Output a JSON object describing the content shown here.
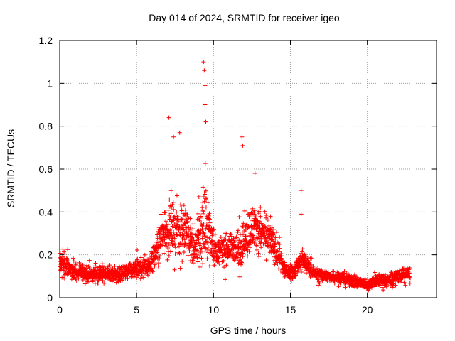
{
  "chart_data": {
    "type": "scatter",
    "title": "Day 014 of 2024, SRMTID for receiver igeo",
    "xlabel": "GPS time / hours",
    "ylabel": "SRMTID / TECUs",
    "xlim": [
      0,
      24.5
    ],
    "ylim": [
      0,
      1.2
    ],
    "xticks": [
      0,
      5,
      10,
      15,
      20
    ],
    "yticks": [
      0,
      0.2,
      0.4,
      0.6,
      0.8,
      1,
      1.2
    ],
    "ytick_labels": [
      "0",
      "0.2",
      "0.4",
      "0.6",
      "0.8",
      "1",
      "1.2"
    ],
    "grid": true,
    "marker": "plus",
    "series_color": "#ff0000",
    "envelope": {
      "x": [
        0,
        0.5,
        1,
        2,
        3,
        4,
        5,
        5.8,
        6.3,
        6.8,
        7.3,
        7.8,
        8.3,
        8.8,
        9.2,
        9.5,
        9.8,
        10.2,
        10.7,
        11.2,
        11.7,
        12.2,
        12.7,
        13.2,
        13.7,
        14.2,
        14.7,
        15.2,
        15.7,
        16.2,
        16.7,
        17.2,
        18,
        19,
        20,
        20.5,
        21,
        21.5,
        22,
        22.8
      ],
      "center": [
        0.16,
        0.15,
        0.12,
        0.11,
        0.11,
        0.11,
        0.13,
        0.15,
        0.22,
        0.32,
        0.33,
        0.32,
        0.31,
        0.21,
        0.32,
        0.34,
        0.28,
        0.22,
        0.22,
        0.24,
        0.22,
        0.3,
        0.34,
        0.3,
        0.27,
        0.2,
        0.12,
        0.12,
        0.18,
        0.14,
        0.11,
        0.1,
        0.1,
        0.08,
        0.06,
        0.08,
        0.08,
        0.08,
        0.1,
        0.11
      ],
      "spread": [
        0.1,
        0.08,
        0.05,
        0.05,
        0.05,
        0.05,
        0.06,
        0.07,
        0.1,
        0.16,
        0.16,
        0.18,
        0.15,
        0.12,
        0.22,
        0.26,
        0.18,
        0.08,
        0.1,
        0.09,
        0.12,
        0.16,
        0.15,
        0.13,
        0.11,
        0.1,
        0.05,
        0.05,
        0.08,
        0.05,
        0.04,
        0.04,
        0.04,
        0.04,
        0.03,
        0.04,
        0.04,
        0.04,
        0.05,
        0.05
      ]
    },
    "peaks": [
      {
        "x": 9.35,
        "y": 1.1
      },
      {
        "x": 9.4,
        "y": 1.06
      },
      {
        "x": 9.45,
        "y": 0.99
      },
      {
        "x": 9.45,
        "y": 0.9
      },
      {
        "x": 9.5,
        "y": 0.82
      },
      {
        "x": 7.1,
        "y": 0.84
      },
      {
        "x": 7.8,
        "y": 0.77
      },
      {
        "x": 7.4,
        "y": 0.75
      },
      {
        "x": 11.85,
        "y": 0.75
      },
      {
        "x": 11.9,
        "y": 0.71
      },
      {
        "x": 12.7,
        "y": 0.58
      },
      {
        "x": 15.7,
        "y": 0.5
      },
      {
        "x": 15.7,
        "y": 0.39
      }
    ]
  }
}
